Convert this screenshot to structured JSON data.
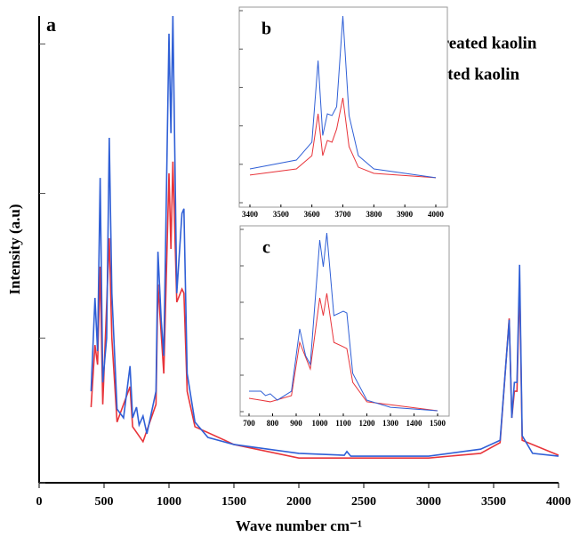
{
  "chart_data": [
    {
      "type": "line",
      "title": "a",
      "xlabel": "Wave number cm⁻¹",
      "ylabel": "Intensity (a.u)",
      "xlim": [
        0,
        4000
      ],
      "xticks": [
        0,
        500,
        1000,
        1500,
        2000,
        2500,
        3000,
        3500,
        4000
      ],
      "ylim": [
        0,
        100
      ],
      "yticks": [
        0,
        31,
        62,
        94
      ],
      "legend": "upper right",
      "series": [
        {
          "name": "Untreated kaolin",
          "color": "#e8343a",
          "x": [
            400,
            430,
            450,
            470,
            490,
            540,
            560,
            600,
            700,
            720,
            800,
            900,
            915,
            960,
            1000,
            1015,
            1030,
            1060,
            1100,
            1115,
            1140,
            1200,
            1500,
            2000,
            3000,
            3400,
            3550,
            3620,
            3640,
            3660,
            3680,
            3700,
            3720,
            4000
          ],
          "values": [
            16.2,
            29.5,
            25.3,
            46.3,
            16.8,
            52.4,
            31.0,
            13.0,
            20.6,
            12.0,
            8.8,
            16.8,
            42.5,
            23.4,
            66.3,
            50.1,
            68.8,
            38.7,
            41.5,
            40.6,
            19.6,
            12.0,
            8.2,
            5.3,
            5.3,
            6.3,
            8.6,
            35.2,
            13.9,
            19.6,
            19.6,
            43.4,
            9.1,
            5.9
          ]
        },
        {
          "name": "Treated kaolin",
          "color": "#2f5fd6",
          "x": [
            400,
            430,
            450,
            470,
            490,
            520,
            540,
            560,
            600,
            650,
            700,
            720,
            750,
            770,
            800,
            830,
            900,
            915,
            940,
            960,
            1000,
            1015,
            1030,
            1060,
            1100,
            1115,
            1140,
            1200,
            1300,
            1500,
            2000,
            2350,
            2370,
            2400,
            3000,
            3400,
            3550,
            3620,
            3640,
            3660,
            3680,
            3700,
            3720,
            3800,
            4000
          ],
          "values": [
            19.6,
            39.6,
            28.2,
            65.3,
            21.5,
            31.0,
            73.9,
            40.6,
            15.8,
            13.9,
            25.0,
            13.9,
            16.2,
            12.4,
            14.3,
            10.5,
            19.6,
            49.5,
            34.9,
            27.2,
            96.2,
            74.9,
            100,
            40.6,
            57.7,
            58.7,
            23.4,
            13.0,
            9.7,
            8.2,
            6.3,
            5.9,
            6.7,
            5.7,
            5.7,
            7.2,
            9.1,
            34.9,
            13.9,
            21.5,
            21.5,
            46.7,
            10.1,
            6.3,
            5.7
          ]
        }
      ]
    },
    {
      "type": "line",
      "title": "b",
      "xlim": [
        3400,
        4000
      ],
      "xticks": [
        3400,
        3500,
        3600,
        3700,
        3800,
        3900,
        4000
      ],
      "ylim": [
        0,
        100
      ],
      "yticks": [
        0,
        20,
        40,
        60,
        80,
        100
      ],
      "series": [
        {
          "color": "#e8343a",
          "x": [
            3400,
            3550,
            3600,
            3620,
            3635,
            3650,
            3665,
            3680,
            3700,
            3720,
            3750,
            3800,
            4000
          ],
          "values": [
            14.4,
            17.6,
            24.5,
            46.3,
            24.5,
            32.4,
            31.5,
            38.4,
            54.6,
            29.2,
            18.5,
            15.3,
            13
          ]
        },
        {
          "color": "#2f5fd6",
          "x": [
            3400,
            3550,
            3600,
            3620,
            3635,
            3650,
            3665,
            3680,
            3700,
            3720,
            3750,
            3800,
            4000
          ],
          "values": [
            17.6,
            22.2,
            31.5,
            74,
            35,
            46.3,
            45.4,
            50,
            97.2,
            45.4,
            24.5,
            17.6,
            13
          ]
        }
      ]
    },
    {
      "type": "line",
      "title": "c",
      "xlim": [
        700,
        1500
      ],
      "xticks": [
        700,
        800,
        900,
        1000,
        1100,
        1200,
        1300,
        1400,
        1500
      ],
      "ylim": [
        0,
        100
      ],
      "yticks": [
        0,
        20,
        40,
        60,
        80,
        100
      ],
      "series": [
        {
          "color": "#e8343a",
          "x": [
            700,
            750,
            790,
            880,
            915,
            960,
            1000,
            1015,
            1030,
            1060,
            1100,
            1115,
            1140,
            1200,
            1500
          ],
          "values": [
            7.3,
            6.3,
            5.4,
            8.8,
            38,
            23.4,
            62.4,
            52.7,
            64.9,
            38,
            35.6,
            34.6,
            16.1,
            5.4,
            0.5
          ]
        },
        {
          "color": "#2f5fd6",
          "x": [
            700,
            750,
            770,
            790,
            820,
            880,
            915,
            940,
            960,
            1000,
            1015,
            1030,
            1060,
            1100,
            1115,
            1140,
            1200,
            1300,
            1500
          ],
          "values": [
            11.2,
            11.2,
            8.8,
            9.8,
            6.3,
            11.2,
            45.4,
            30.7,
            25.9,
            94.1,
            79.5,
            98,
            52.7,
            55.1,
            54.1,
            21,
            6.3,
            2.4,
            0.5
          ]
        }
      ]
    }
  ]
}
